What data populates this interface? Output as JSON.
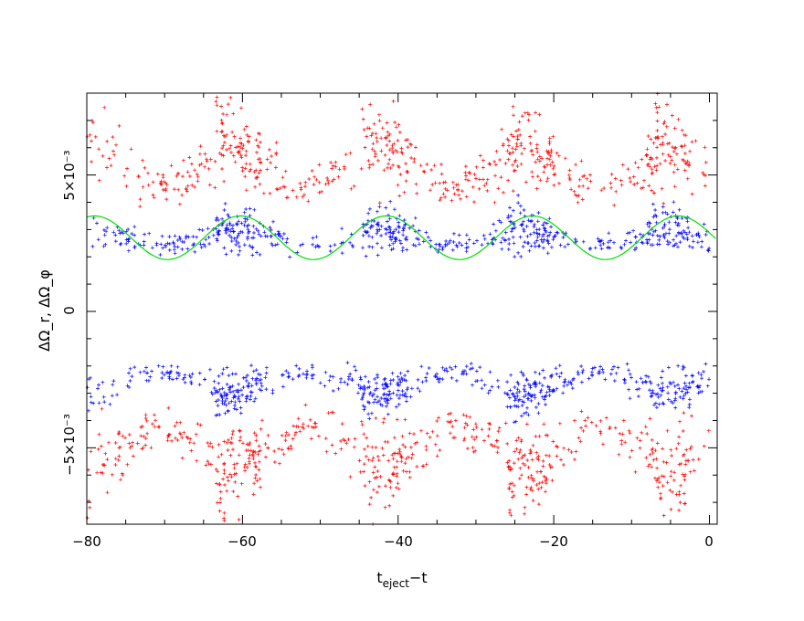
{
  "chart_data": {
    "type": "scatter",
    "xlabel": "t_eject−t",
    "xlabel_main": "t",
    "xlabel_sub": "eject",
    "xlabel_rest": "−t",
    "ylabel": "ΔΩ_r, ΔΩ_φ",
    "xlim": [
      -80,
      1
    ],
    "ylim": [
      -0.0078,
      0.008
    ],
    "x_ticks": [
      -80,
      -60,
      -40,
      -20,
      0
    ],
    "x_tick_labels": [
      "−80",
      "−60",
      "−40",
      "−20",
      "0"
    ],
    "y_ticks": [
      -0.005,
      0,
      0.005
    ],
    "y_tick_labels": [
      "−5×10⁻³",
      "0",
      "5×10⁻³"
    ],
    "grid": false,
    "colors": {
      "red": "#ff0000",
      "blue": "#0000ff",
      "green": "#00dd00"
    },
    "orbital_period": 18.75,
    "series": [
      {
        "color": "red",
        "kind": "scatter",
        "branch": "upper",
        "peak_times": [
          -63.5,
          -44.7,
          -26.0,
          -8.2
        ],
        "values_at_peak": 0.0063,
        "values_at_trough": 0.0045,
        "spread": 0.0006
      },
      {
        "color": "blue",
        "kind": "scatter",
        "branch": "upper",
        "peak_times": [
          -63.5,
          -44.7,
          -26.0,
          -8.2
        ],
        "values_at_peak": 0.0031,
        "values_at_trough": 0.0024,
        "spread": 0.0003
      },
      {
        "color": "blue",
        "kind": "scatter",
        "branch": "lower",
        "peak_times": [
          -63.5,
          -44.7,
          -26.0,
          -8.2
        ],
        "values_at_peak": -0.0031,
        "values_at_trough": -0.0022,
        "spread": 0.0003
      },
      {
        "color": "red",
        "kind": "scatter",
        "branch": "lower",
        "peak_times": [
          -63.5,
          -44.7,
          -26.0,
          -8.2
        ],
        "values_at_peak": -0.006,
        "values_at_trough": -0.0042,
        "spread": 0.0006
      },
      {
        "color": "green",
        "kind": "line",
        "x_max_values": [
          -79.0,
          -61.0,
          -43.0,
          -25.0,
          -6.5
        ],
        "y_max": 0.0035,
        "y_min": 0.0019,
        "y_at_zero": 0.0027
      }
    ]
  }
}
